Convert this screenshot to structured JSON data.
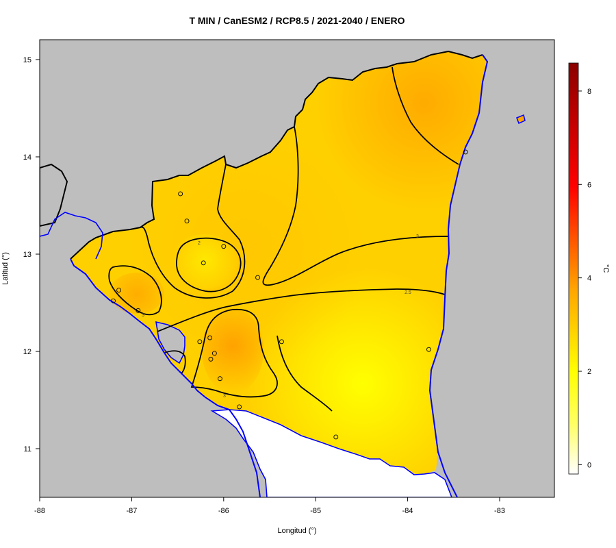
{
  "title": "T MIN / CanESM2 / RCP8.5 / 2021-2040 / ENERO",
  "axes": {
    "xlabel": "Longitud (°)",
    "ylabel": "Latitud (°)",
    "x_ticks": [
      "-88",
      "-87",
      "-86",
      "-85",
      "-84",
      "-83"
    ],
    "y_ticks": [
      "15",
      "14",
      "13",
      "12",
      "11"
    ]
  },
  "colorbar": {
    "unit": "°C",
    "ticks": [
      "8",
      "6",
      "4",
      "2",
      "0"
    ],
    "range": [
      -0.2,
      8.6
    ],
    "colors": [
      "#ffffff",
      "#ffff00",
      "#ffa500",
      "#ff0000",
      "#8b0000"
    ]
  },
  "colors": {
    "background": "#bebebe",
    "coastline": "#0000ff",
    "border": "#000000"
  },
  "contour_labels": [
    "2",
    "3",
    "3",
    "3",
    "2.5",
    "3",
    "3"
  ],
  "stations": [
    {
      "lon": -86.47,
      "lat": 13.62
    },
    {
      "lon": -86.4,
      "lat": 13.34
    },
    {
      "lon": -86.22,
      "lat": 12.91
    },
    {
      "lon": -86.0,
      "lat": 13.08
    },
    {
      "lon": -85.63,
      "lat": 12.76
    },
    {
      "lon": -87.14,
      "lat": 12.63
    },
    {
      "lon": -87.2,
      "lat": 12.52
    },
    {
      "lon": -86.93,
      "lat": 12.42
    },
    {
      "lon": -86.26,
      "lat": 12.1
    },
    {
      "lon": -86.15,
      "lat": 12.14
    },
    {
      "lon": -86.1,
      "lat": 11.98
    },
    {
      "lon": -86.14,
      "lat": 11.92
    },
    {
      "lon": -86.04,
      "lat": 11.72
    },
    {
      "lon": -85.83,
      "lat": 11.43
    },
    {
      "lon": -85.37,
      "lat": 12.1
    },
    {
      "lon": -84.78,
      "lat": 11.12
    },
    {
      "lon": -83.77,
      "lat": 12.02
    },
    {
      "lon": -83.37,
      "lat": 14.05
    }
  ]
}
